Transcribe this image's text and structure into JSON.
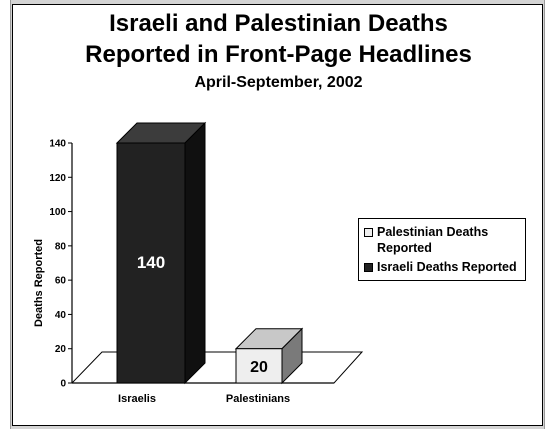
{
  "chart_data": {
    "type": "bar",
    "title": "Israeli and Palestinian Deaths",
    "title_line2": "Reported in Front-Page Headlines",
    "subtitle": "April-September, 2002",
    "ylabel": "Deaths  Reported",
    "xlabel": "",
    "ylim": [
      0,
      140
    ],
    "yticks": [
      "0",
      "20",
      "40",
      "60",
      "80",
      "100",
      "120",
      "140"
    ],
    "categories": [
      "Israelis",
      "Palestinians"
    ],
    "values": [
      140,
      20
    ],
    "data_labels": [
      "140",
      "20"
    ],
    "series": [
      {
        "name": "Palestinian Deaths Reported",
        "color": "#eeeeee"
      },
      {
        "name": "Israeli Deaths Reported",
        "color": "#222222"
      }
    ],
    "legend_position": "right",
    "grid": false,
    "three_d": true
  }
}
